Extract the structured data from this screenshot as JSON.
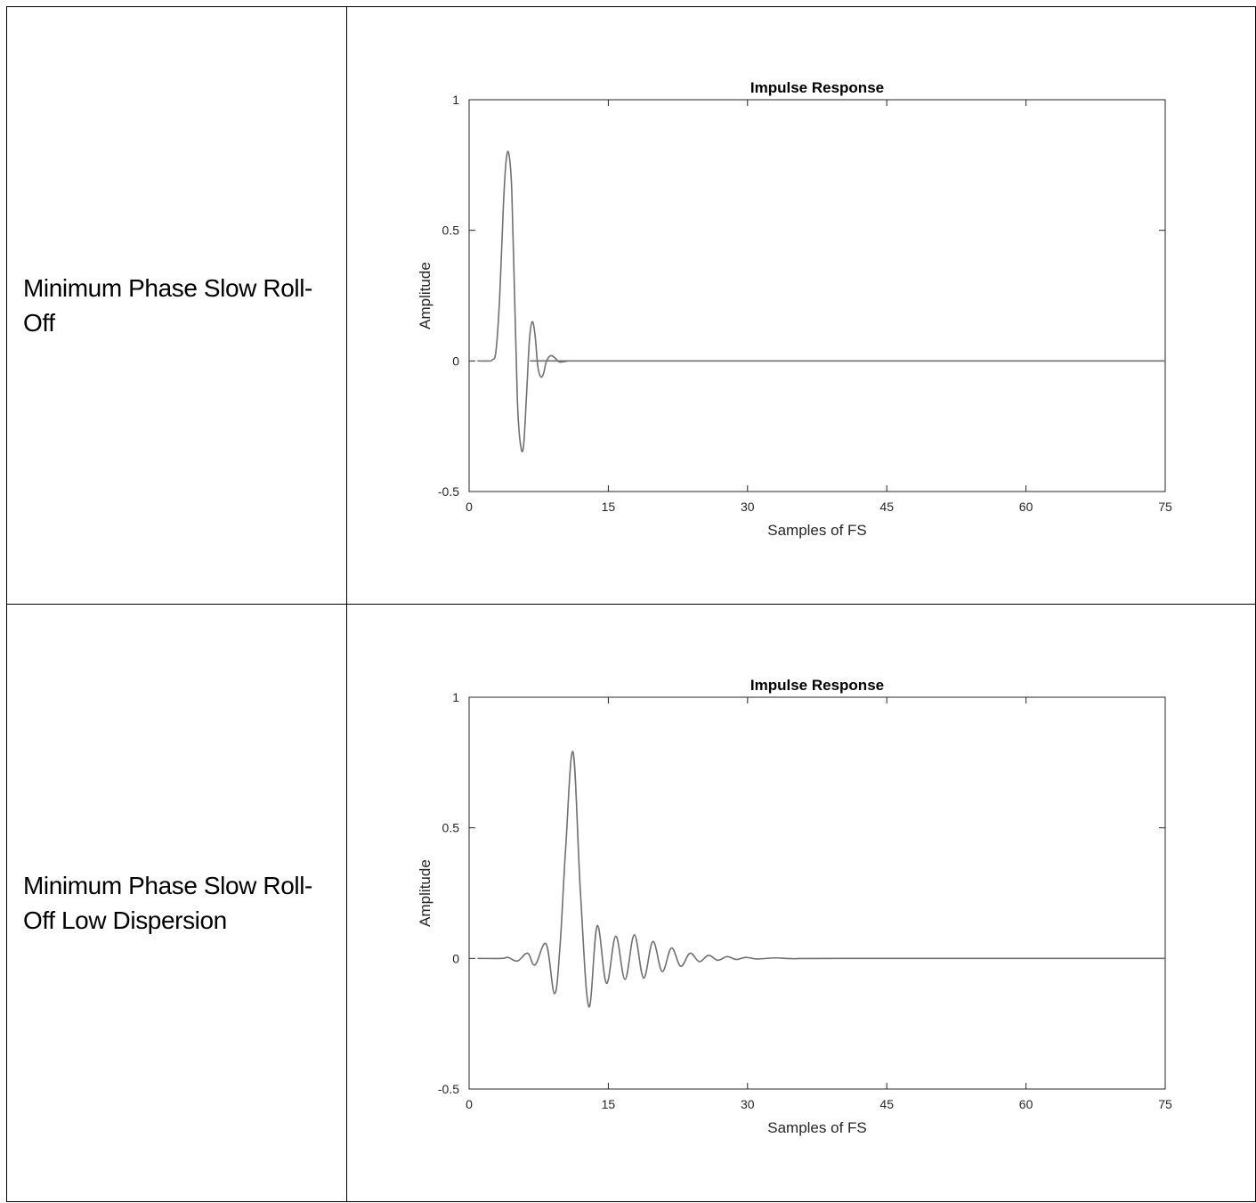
{
  "rows": [
    {
      "label": "Minimum Phase Slow Roll-Off",
      "chart_data": {
        "type": "line",
        "title": "Impulse Response",
        "xlabel": "Samples of FS",
        "ylabel": "Amplitude",
        "xlim": [
          0,
          75
        ],
        "ylim": [
          -0.5,
          1
        ],
        "xticks": [
          0,
          15,
          30,
          45,
          60,
          75
        ],
        "yticks": [
          -0.5,
          0,
          0.5,
          1
        ],
        "xtick_labels": [
          "0",
          "15",
          "30",
          "45",
          "60",
          "75"
        ],
        "ytick_labels": [
          "-0.5",
          "0",
          "0.5",
          "1"
        ],
        "grid": false,
        "line_color": "#707070",
        "series": [
          {
            "x": [
              0.9,
              2.0,
              2.5,
              2.9,
              3.3,
              3.7,
              4.0,
              4.3,
              4.6,
              4.9,
              5.2,
              5.5,
              5.85,
              6.2,
              6.5,
              6.8,
              7.1,
              7.4,
              7.7,
              8.0,
              8.3,
              8.6,
              8.9,
              9.3,
              9.7,
              10.2,
              10.8,
              12.0,
              75.0
            ],
            "y": [
              0.0,
              0.0,
              0.004,
              0.04,
              0.25,
              0.6,
              0.77,
              0.79,
              0.65,
              0.25,
              -0.15,
              -0.31,
              -0.33,
              -0.12,
              0.08,
              0.15,
              0.1,
              -0.02,
              -0.06,
              -0.05,
              -0.005,
              0.015,
              0.02,
              0.01,
              -0.004,
              -0.003,
              0.0,
              0.0,
              0.0
            ]
          }
        ]
      }
    },
    {
      "label": "Minimum Phase Slow Roll-Off Low Dispersion",
      "chart_data": {
        "type": "line",
        "title": "Impulse Response",
        "xlabel": "Samples of FS",
        "ylabel": "Amplitude",
        "xlim": [
          0,
          75
        ],
        "ylim": [
          -0.5,
          1
        ],
        "xticks": [
          0,
          15,
          30,
          45,
          60,
          75
        ],
        "yticks": [
          -0.5,
          0,
          0.5,
          1
        ],
        "xtick_labels": [
          "0",
          "15",
          "30",
          "45",
          "60",
          "75"
        ],
        "ytick_labels": [
          "-0.5",
          "0",
          "0.5",
          "1"
        ],
        "grid": false,
        "line_color": "#707070",
        "series": [
          {
            "x": [
              0.9,
              3.5,
              4.2,
              5.2,
              6.3,
              7.1,
              8.3,
              9.2,
              9.8,
              10.4,
              11.2,
              12.0,
              12.9,
              13.8,
              14.8,
              15.8,
              16.8,
              17.8,
              18.8,
              19.8,
              20.8,
              21.8,
              22.8,
              23.8,
              24.8,
              25.8,
              26.8,
              27.8,
              28.8,
              29.8,
              31.0,
              33.0,
              35.0,
              40.0,
              75.0
            ],
            "y": [
              0.0,
              0.0,
              0.004,
              -0.01,
              0.02,
              -0.025,
              0.055,
              -0.135,
              0.05,
              0.42,
              0.79,
              0.25,
              -0.185,
              0.125,
              -0.095,
              0.085,
              -0.08,
              0.09,
              -0.075,
              0.065,
              -0.05,
              0.04,
              -0.03,
              0.02,
              -0.012,
              0.012,
              -0.007,
              0.007,
              -0.004,
              0.004,
              -0.002,
              0.002,
              -0.001,
              0.0,
              0.0
            ]
          }
        ]
      }
    }
  ]
}
